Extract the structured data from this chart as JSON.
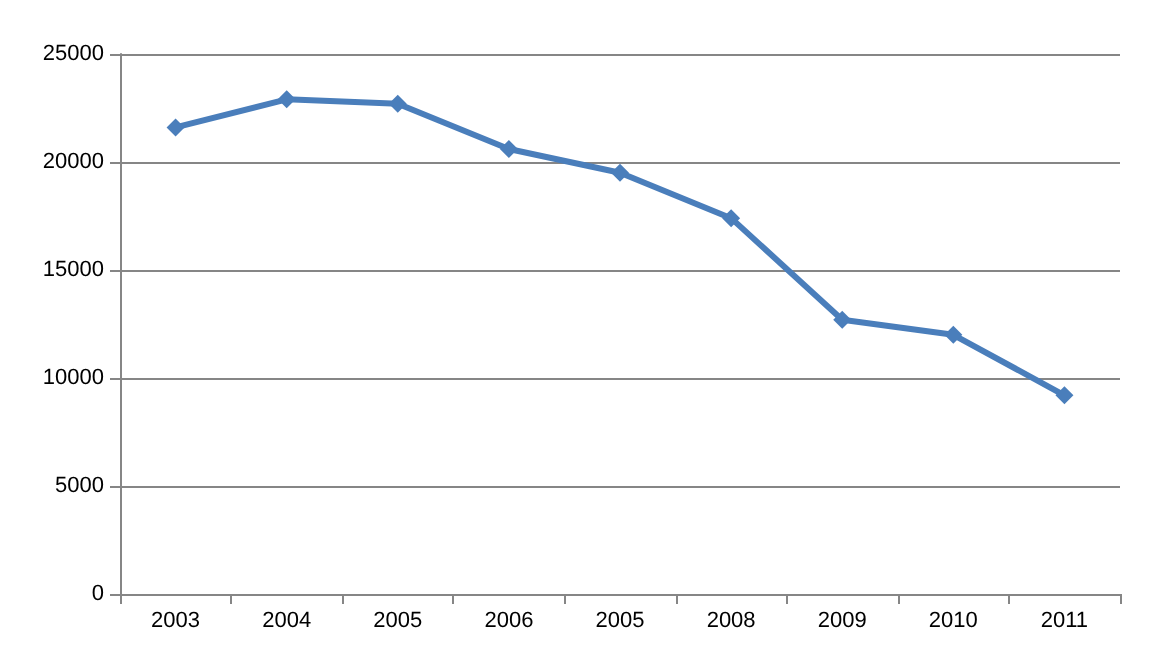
{
  "chart_data": {
    "type": "line",
    "categories": [
      "2003",
      "2004",
      "2005",
      "2006",
      "2005",
      "2008",
      "2009",
      "2010",
      "2011"
    ],
    "series": [
      {
        "color": "#4a7ebb",
        "values": [
          21600,
          22900,
          22700,
          20600,
          19500,
          17400,
          12700,
          12000,
          9200
        ]
      }
    ],
    "ylim": [
      0,
      25000
    ],
    "yticks": [
      0,
      5000,
      10000,
      15000,
      20000,
      25000
    ],
    "grid": "y",
    "marker": "diamond",
    "line_style": "solid"
  }
}
